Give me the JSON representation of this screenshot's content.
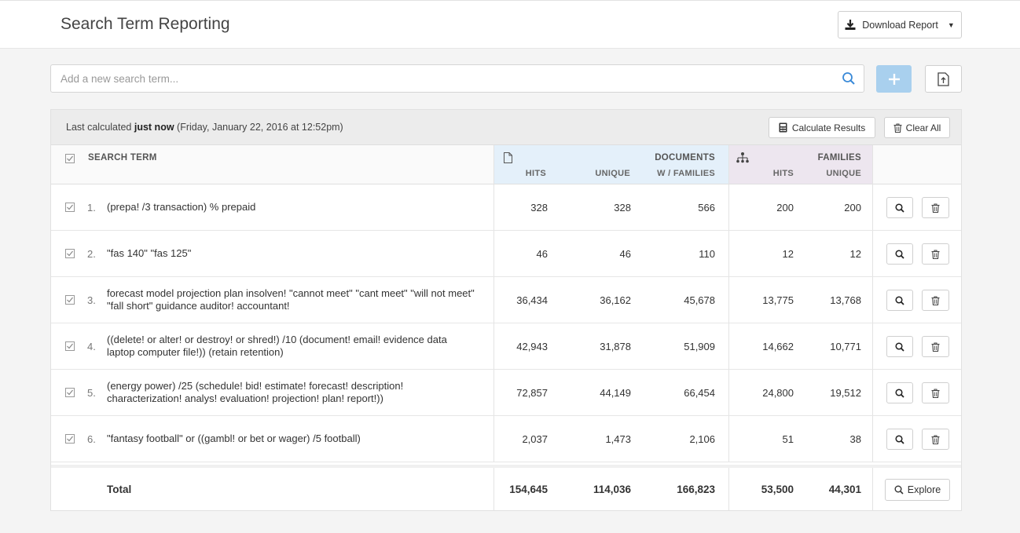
{
  "header": {
    "title": "Search Term Reporting",
    "download_label": "Download Report"
  },
  "search": {
    "placeholder": "Add a new search term..."
  },
  "calc": {
    "prefix": "Last calculated ",
    "bold": "just now",
    "suffix": " (Friday, January 22, 2016 at 12:52pm)",
    "calculate_label": "Calculate Results",
    "clear_label": "Clear All"
  },
  "columns": {
    "search_term": "SEARCH TERM",
    "documents": "DOCUMENTS",
    "w_families": "W / FAMILIES",
    "families": "FAMILIES",
    "hits": "HITS",
    "unique": "UNIQUE",
    "fam_hits": "HITS",
    "fam_unique": "UNIQUE"
  },
  "rows": [
    {
      "index": "1.",
      "term": "(prepa! /3 transaction) % prepaid",
      "hits": "328",
      "unique": "328",
      "w_families": "566",
      "fam_hits": "200",
      "fam_unique": "200"
    },
    {
      "index": "2.",
      "term": "\"fas 140\" \"fas 125\"",
      "hits": "46",
      "unique": "46",
      "w_families": "110",
      "fam_hits": "12",
      "fam_unique": "12"
    },
    {
      "index": "3.",
      "term": "forecast model projection plan insolven! \"cannot meet\" \"cant meet\" \"will not meet\" \"fall short\" guidance auditor! accountant!",
      "hits": "36,434",
      "unique": "36,162",
      "w_families": "45,678",
      "fam_hits": "13,775",
      "fam_unique": "13,768"
    },
    {
      "index": "4.",
      "term": "((delete! or alter! or destroy! or shred!) /10 (document! email! evidence data laptop computer file!)) (retain retention)",
      "hits": "42,943",
      "unique": "31,878",
      "w_families": "51,909",
      "fam_hits": "14,662",
      "fam_unique": "10,771"
    },
    {
      "index": "5.",
      "term": "(energy power) /25 (schedule! bid! estimate! forecast! description! characterization! analys! evaluation! projection! plan! report!))",
      "hits": "72,857",
      "unique": "44,149",
      "w_families": "66,454",
      "fam_hits": "24,800",
      "fam_unique": "19,512"
    },
    {
      "index": "6.",
      "term": "\"fantasy football\" or ((gambl! or bet or wager) /5 football)",
      "hits": "2,037",
      "unique": "1,473",
      "w_families": "2,106",
      "fam_hits": "51",
      "fam_unique": "38"
    }
  ],
  "total": {
    "label": "Total",
    "hits": "154,645",
    "unique": "114,036",
    "w_families": "166,823",
    "fam_hits": "53,500",
    "fam_unique": "44,301",
    "explore_label": "Explore"
  },
  "colors": {
    "accent_light": "#a9d0ee",
    "search_icon": "#3a8ad8",
    "documents_bg": "#e4f0fa",
    "families_bg": "#ede6ef"
  }
}
